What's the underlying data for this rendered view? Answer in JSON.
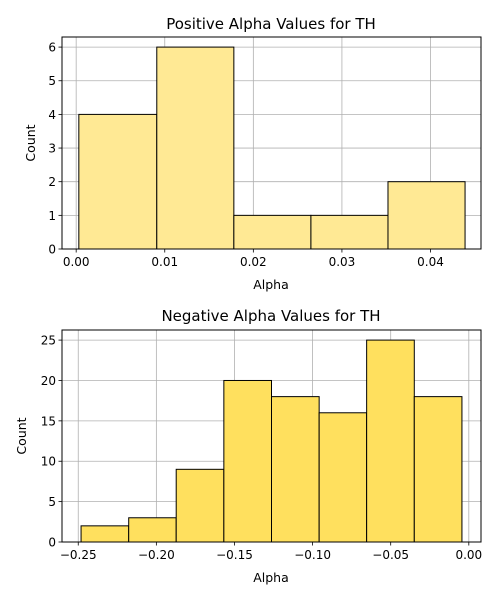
{
  "chart_data": [
    {
      "type": "bar",
      "title": "Positive Alpha Values for TH",
      "xlabel": "Alpha",
      "ylabel": "Count",
      "bin_edges": [
        0.0003,
        0.0091,
        0.0178,
        0.0265,
        0.0352,
        0.0439
      ],
      "values": [
        4,
        6,
        1,
        1,
        2
      ],
      "xlim": [
        -0.0016,
        0.0457
      ],
      "ylim": [
        0,
        6.3
      ],
      "x_ticks": [
        0.0,
        0.01,
        0.02,
        0.03,
        0.04
      ],
      "x_tick_labels": [
        "0.00",
        "0.01",
        "0.02",
        "0.03",
        "0.04"
      ],
      "y_ticks": [
        0,
        1,
        2,
        3,
        4,
        5,
        6
      ],
      "y_tick_labels": [
        "0",
        "1",
        "2",
        "3",
        "4",
        "5",
        "6"
      ],
      "bar_color": "#FFE994",
      "edge_color": "#000000",
      "grid": true
    },
    {
      "type": "bar",
      "title": "Negative Alpha Values for TH",
      "xlabel": "Alpha",
      "ylabel": "Count",
      "bin_edges": [
        -0.2482,
        -0.2177,
        -0.1873,
        -0.1568,
        -0.1263,
        -0.0958,
        -0.0654,
        -0.0349,
        -0.0044
      ],
      "values": [
        2,
        3,
        9,
        20,
        18,
        16,
        25,
        18
      ],
      "xlim": [
        -0.2604,
        0.0078
      ],
      "ylim": [
        0,
        26.25
      ],
      "x_ticks": [
        -0.25,
        -0.2,
        -0.15,
        -0.1,
        -0.05,
        0.0
      ],
      "x_tick_labels": [
        "−0.25",
        "−0.20",
        "−0.15",
        "−0.10",
        "−0.05",
        "0.00"
      ],
      "y_ticks": [
        0,
        5,
        10,
        15,
        20,
        25
      ],
      "y_tick_labels": [
        "0",
        "5",
        "10",
        "15",
        "20",
        "25"
      ],
      "bar_color": "#FFE05E",
      "edge_color": "#000000",
      "grid": true
    }
  ]
}
